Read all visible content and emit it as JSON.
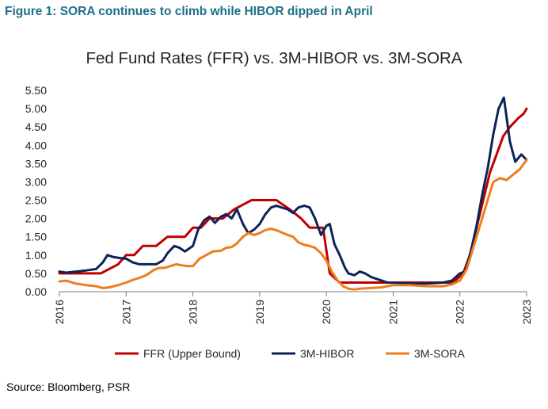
{
  "figure_title": "Figure 1: SORA continues to climb while HIBOR dipped in April",
  "source": "Source: Bloomberg, PSR",
  "chart_data": {
    "type": "line",
    "title": "Fed Fund Rates (FFR) vs. 3M-HIBOR vs. 3M-SORA",
    "xlabel": "",
    "ylabel": "",
    "xlim": [
      2016.0,
      2023.0
    ],
    "ylim": [
      0.0,
      5.5
    ],
    "y_ticks": [
      "0.00",
      "0.50",
      "1.00",
      "1.50",
      "2.00",
      "2.50",
      "3.00",
      "3.50",
      "4.00",
      "4.50",
      "5.00",
      "5.50"
    ],
    "x_ticks": [
      "2016",
      "2017",
      "2018",
      "2019",
      "2020",
      "2021",
      "2022",
      "2023"
    ],
    "grid": false,
    "legend_position": "bottom",
    "series": [
      {
        "name": "FFR (Upper Bound)",
        "color": "#c00000",
        "x": [
          2016.0,
          2016.62,
          2016.88,
          2017.0,
          2017.12,
          2017.25,
          2017.45,
          2017.62,
          2017.88,
          2018.0,
          2018.12,
          2018.25,
          2018.45,
          2018.62,
          2018.88,
          2019.0,
          2019.25,
          2019.45,
          2019.62,
          2019.75,
          2019.95,
          2020.05,
          2020.2,
          2021.0,
          2021.9,
          2022.05,
          2022.15,
          2022.25,
          2022.35,
          2022.45,
          2022.55,
          2022.65,
          2022.75,
          2022.88,
          2022.95,
          2023.0
        ],
        "y": [
          0.5,
          0.5,
          0.75,
          1.0,
          1.0,
          1.25,
          1.25,
          1.5,
          1.5,
          1.75,
          1.75,
          2.0,
          2.0,
          2.25,
          2.5,
          2.5,
          2.5,
          2.25,
          2.0,
          1.75,
          1.75,
          0.5,
          0.25,
          0.25,
          0.25,
          0.5,
          1.0,
          1.75,
          2.5,
          3.25,
          3.75,
          4.25,
          4.5,
          4.75,
          4.85,
          5.0
        ]
      },
      {
        "name": "3M-HIBOR",
        "color": "#0d2458",
        "x": [
          2016.0,
          2016.1,
          2016.25,
          2016.4,
          2016.55,
          2016.65,
          2016.72,
          2016.8,
          2016.9,
          2017.0,
          2017.1,
          2017.2,
          2017.3,
          2017.45,
          2017.55,
          2017.62,
          2017.72,
          2017.8,
          2017.88,
          2018.0,
          2018.08,
          2018.17,
          2018.25,
          2018.33,
          2018.42,
          2018.5,
          2018.58,
          2018.66,
          2018.75,
          2018.83,
          2018.92,
          2019.0,
          2019.08,
          2019.17,
          2019.25,
          2019.33,
          2019.42,
          2019.5,
          2019.58,
          2019.67,
          2019.75,
          2019.83,
          2019.92,
          2020.0,
          2020.05,
          2020.12,
          2020.2,
          2020.28,
          2020.33,
          2020.42,
          2020.5,
          2020.58,
          2020.67,
          2020.75,
          2020.83,
          2020.92,
          2021.0,
          2021.25,
          2021.5,
          2021.75,
          2021.88,
          2022.0,
          2022.08,
          2022.17,
          2022.25,
          2022.33,
          2022.42,
          2022.5,
          2022.58,
          2022.66,
          2022.75,
          2022.83,
          2022.92,
          2023.0
        ],
        "y": [
          0.55,
          0.52,
          0.55,
          0.58,
          0.62,
          0.8,
          1.0,
          0.95,
          0.92,
          0.9,
          0.8,
          0.75,
          0.75,
          0.75,
          0.85,
          1.05,
          1.25,
          1.2,
          1.1,
          1.25,
          1.7,
          1.95,
          2.05,
          1.88,
          2.05,
          2.12,
          2.0,
          2.25,
          1.85,
          1.6,
          1.7,
          1.85,
          2.1,
          2.3,
          2.35,
          2.3,
          2.25,
          2.15,
          2.3,
          2.35,
          2.3,
          2.0,
          1.55,
          1.8,
          1.85,
          1.3,
          1.0,
          0.65,
          0.5,
          0.45,
          0.55,
          0.5,
          0.4,
          0.35,
          0.3,
          0.25,
          0.25,
          0.22,
          0.22,
          0.25,
          0.3,
          0.5,
          0.55,
          1.15,
          1.8,
          2.6,
          3.4,
          4.3,
          5.0,
          5.3,
          4.1,
          3.55,
          3.75,
          3.6
        ]
      },
      {
        "name": "3M-SORA",
        "color": "#ee7d1c",
        "x": [
          2016.0,
          2016.1,
          2016.25,
          2016.4,
          2016.55,
          2016.65,
          2016.75,
          2016.88,
          2017.0,
          2017.1,
          2017.2,
          2017.3,
          2017.42,
          2017.5,
          2017.58,
          2017.66,
          2017.75,
          2017.83,
          2017.92,
          2018.0,
          2018.1,
          2018.2,
          2018.3,
          2018.42,
          2018.5,
          2018.58,
          2018.66,
          2018.75,
          2018.83,
          2018.92,
          2019.0,
          2019.08,
          2019.17,
          2019.25,
          2019.33,
          2019.42,
          2019.5,
          2019.58,
          2019.67,
          2019.75,
          2019.83,
          2019.92,
          2020.0,
          2020.08,
          2020.17,
          2020.25,
          2020.33,
          2020.42,
          2020.5,
          2020.67,
          2020.83,
          2021.0,
          2021.25,
          2021.5,
          2021.75,
          2021.88,
          2022.0,
          2022.1,
          2022.2,
          2022.3,
          2022.4,
          2022.5,
          2022.6,
          2022.7,
          2022.8,
          2022.9,
          2023.0
        ],
        "y": [
          0.28,
          0.3,
          0.22,
          0.18,
          0.15,
          0.1,
          0.12,
          0.18,
          0.25,
          0.32,
          0.38,
          0.45,
          0.6,
          0.65,
          0.65,
          0.7,
          0.75,
          0.72,
          0.7,
          0.7,
          0.9,
          1.0,
          1.1,
          1.12,
          1.2,
          1.22,
          1.32,
          1.5,
          1.6,
          1.55,
          1.6,
          1.68,
          1.72,
          1.68,
          1.62,
          1.55,
          1.5,
          1.35,
          1.28,
          1.25,
          1.2,
          1.05,
          0.85,
          0.55,
          0.3,
          0.15,
          0.08,
          0.06,
          0.08,
          0.1,
          0.12,
          0.18,
          0.18,
          0.15,
          0.15,
          0.2,
          0.3,
          0.6,
          1.2,
          1.8,
          2.4,
          3.0,
          3.1,
          3.05,
          3.2,
          3.35,
          3.6
        ]
      }
    ]
  }
}
